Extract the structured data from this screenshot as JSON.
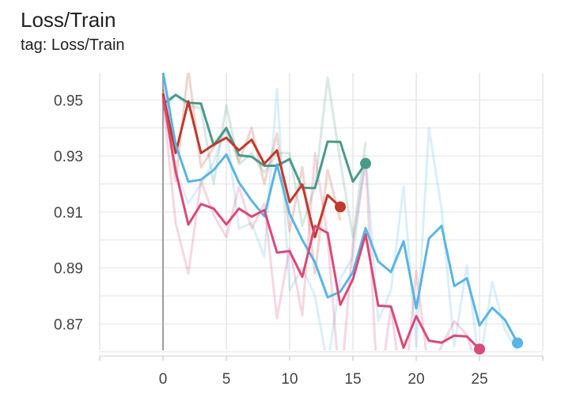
{
  "header": {
    "title": "Loss/Train",
    "subtitle": "tag: Loss/Train"
  },
  "chart_data": {
    "type": "line",
    "title": "Loss/Train",
    "subtitle": "tag: Loss/Train",
    "xlabel": "",
    "ylabel": "",
    "xlim": [
      -5,
      30
    ],
    "ylim": [
      0.8605,
      0.9597
    ],
    "x_ticks": [
      0,
      5,
      10,
      15,
      20,
      25
    ],
    "y_ticks": [
      0.87,
      0.89,
      0.91,
      0.93,
      0.95
    ],
    "x_tick_labels": [
      "0",
      "5",
      "10",
      "15",
      "20",
      "25"
    ],
    "y_tick_labels": [
      "0.95",
      "0.93",
      "0.91",
      "0.89",
      "0.87"
    ],
    "grid": true,
    "legend": "none",
    "series": [
      {
        "color": "#4a9a8a",
        "smoothed": [
          [
            0,
            0.9485
          ],
          [
            1,
            0.9518
          ],
          [
            2,
            0.949
          ],
          [
            3,
            0.9487
          ],
          [
            4,
            0.9338
          ],
          [
            5,
            0.94
          ],
          [
            6,
            0.9302
          ],
          [
            7,
            0.9297
          ],
          [
            8,
            0.9265
          ],
          [
            9,
            0.9265
          ],
          [
            10,
            0.9289
          ],
          [
            11,
            0.9186
          ],
          [
            12,
            0.9185
          ],
          [
            13,
            0.9351
          ],
          [
            14,
            0.935
          ],
          [
            15,
            0.9208
          ],
          [
            16,
            0.9273
          ]
        ],
        "raw": [
          [
            0,
            0.946
          ],
          [
            1,
            0.952
          ],
          [
            2,
            0.948
          ],
          [
            3,
            0.947
          ],
          [
            4,
            0.92
          ],
          [
            5,
            0.948
          ],
          [
            6,
            0.927
          ],
          [
            7,
            0.931
          ],
          [
            8,
            0.924
          ],
          [
            9,
            0.931
          ],
          [
            10,
            0.931
          ],
          [
            11,
            0.905
          ],
          [
            12,
            0.919
          ],
          [
            13,
            0.958
          ],
          [
            14,
            0.928
          ],
          [
            15,
            0.901
          ],
          [
            16,
            0.935
          ]
        ]
      },
      {
        "color": "#c0392b",
        "smoothed": [
          [
            0,
            0.9523
          ],
          [
            1,
            0.931
          ],
          [
            2,
            0.9495
          ],
          [
            3,
            0.931
          ],
          [
            4,
            0.934
          ],
          [
            5,
            0.9365
          ],
          [
            6,
            0.932
          ],
          [
            7,
            0.9358
          ],
          [
            8,
            0.9272
          ],
          [
            9,
            0.932
          ],
          [
            10,
            0.9135
          ],
          [
            11,
            0.9198
          ],
          [
            12,
            0.901
          ],
          [
            13,
            0.916
          ],
          [
            14,
            0.9118
          ]
        ],
        "raw": [
          [
            0,
            0.954
          ],
          [
            1,
            0.921
          ],
          [
            2,
            0.961
          ],
          [
            3,
            0.926
          ],
          [
            4,
            0.933
          ],
          [
            5,
            0.94
          ],
          [
            6,
            0.928
          ],
          [
            7,
            0.94
          ],
          [
            8,
            0.92
          ],
          [
            9,
            0.938
          ],
          [
            10,
            0.903
          ],
          [
            11,
            0.926
          ],
          [
            12,
            0.888
          ],
          [
            13,
            0.925
          ],
          [
            14,
            0.907
          ]
        ]
      },
      {
        "color": "#5ab4e5",
        "smoothed": [
          [
            0,
            0.96
          ],
          [
            1,
            0.934
          ],
          [
            2,
            0.9208
          ],
          [
            3,
            0.9215
          ],
          [
            4,
            0.925
          ],
          [
            5,
            0.9305
          ],
          [
            6,
            0.9205
          ],
          [
            7,
            0.914
          ],
          [
            8,
            0.9085
          ],
          [
            9,
            0.927
          ],
          [
            10,
            0.9093
          ],
          [
            11,
            0.9
          ],
          [
            12,
            0.892
          ],
          [
            13,
            0.8795
          ],
          [
            14,
            0.8815
          ],
          [
            15,
            0.8885
          ],
          [
            16,
            0.9042
          ],
          [
            17,
            0.8923
          ],
          [
            18,
            0.8885
          ],
          [
            19,
            0.8995
          ],
          [
            20,
            0.8755
          ],
          [
            21,
            0.9005
          ],
          [
            22,
            0.905
          ],
          [
            23,
            0.8835
          ],
          [
            24,
            0.8863
          ],
          [
            25,
            0.8695
          ],
          [
            26,
            0.8758
          ],
          [
            27,
            0.8715
          ],
          [
            28,
            0.8632
          ]
        ],
        "raw": [
          [
            0,
            0.959
          ],
          [
            1,
            0.925
          ],
          [
            2,
            0.913
          ],
          [
            3,
            0.92
          ],
          [
            4,
            0.928
          ],
          [
            5,
            0.94
          ],
          [
            6,
            0.904
          ],
          [
            7,
            0.906
          ],
          [
            8,
            0.894
          ],
          [
            9,
            0.954
          ],
          [
            10,
            0.882
          ],
          [
            11,
            0.89
          ],
          [
            12,
            0.88
          ],
          [
            13,
            0.855
          ],
          [
            14,
            0.886
          ],
          [
            15,
            0.894
          ],
          [
            16,
            0.93
          ],
          [
            17,
            0.871
          ],
          [
            18,
            0.882
          ],
          [
            19,
            0.919
          ],
          [
            20,
            0.862
          ],
          [
            21,
            0.94
          ],
          [
            22,
            0.911
          ],
          [
            23,
            0.862
          ],
          [
            24,
            0.891
          ],
          [
            25,
            0.855
          ],
          [
            26,
            0.885
          ],
          [
            27,
            0.868
          ],
          [
            28,
            0.86
          ]
        ]
      },
      {
        "color": "#d84a78",
        "smoothed": [
          [
            0,
            0.951
          ],
          [
            1,
            0.9245
          ],
          [
            2,
            0.9055
          ],
          [
            3,
            0.9128
          ],
          [
            4,
            0.9112
          ],
          [
            5,
            0.9055
          ],
          [
            6,
            0.9112
          ],
          [
            7,
            0.9083
          ],
          [
            8,
            0.9107
          ],
          [
            9,
            0.8955
          ],
          [
            10,
            0.896
          ],
          [
            11,
            0.8868
          ],
          [
            12,
            0.905
          ],
          [
            13,
            0.9025
          ],
          [
            14,
            0.8768
          ],
          [
            15,
            0.886
          ],
          [
            16,
            0.902
          ],
          [
            17,
            0.8765
          ],
          [
            18,
            0.8762
          ],
          [
            19,
            0.8615
          ],
          [
            20,
            0.8728
          ],
          [
            21,
            0.864
          ],
          [
            22,
            0.8633
          ],
          [
            23,
            0.8658
          ],
          [
            24,
            0.8655
          ],
          [
            25,
            0.861
          ]
        ],
        "raw": [
          [
            0,
            0.95
          ],
          [
            1,
            0.906
          ],
          [
            2,
            0.888
          ],
          [
            3,
            0.921
          ],
          [
            4,
            0.909
          ],
          [
            5,
            0.901
          ],
          [
            6,
            0.919
          ],
          [
            7,
            0.904
          ],
          [
            8,
            0.913
          ],
          [
            9,
            0.872
          ],
          [
            10,
            0.897
          ],
          [
            11,
            0.873
          ],
          [
            12,
            0.931
          ],
          [
            13,
            0.901
          ],
          [
            14,
            0.845
          ],
          [
            15,
            0.899
          ],
          [
            16,
            0.928
          ],
          [
            17,
            0.842
          ],
          [
            18,
            0.876
          ],
          [
            19,
            0.842
          ],
          [
            20,
            0.889
          ],
          [
            21,
            0.852
          ],
          [
            22,
            0.862
          ],
          [
            23,
            0.871
          ],
          [
            24,
            0.866
          ],
          [
            25,
            0.852
          ]
        ]
      }
    ]
  }
}
